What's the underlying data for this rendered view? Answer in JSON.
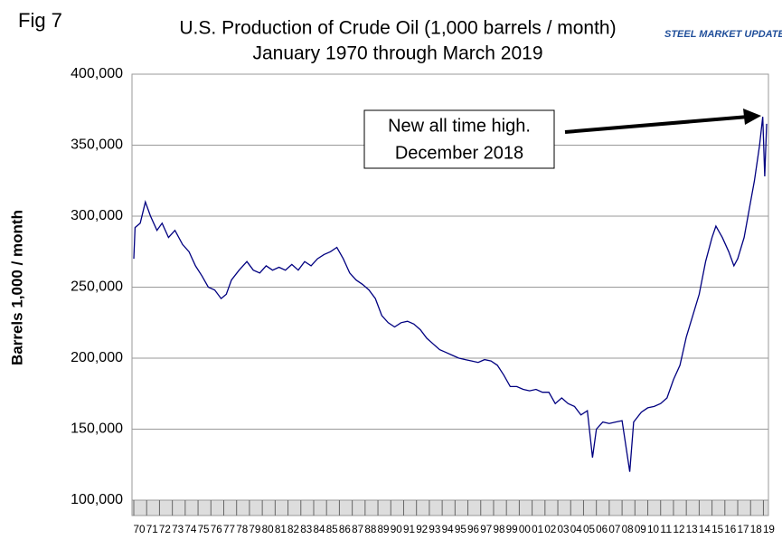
{
  "fig_label": "Fig 7",
  "logo": "STEEL MARKET UPDATE",
  "chart_data": {
    "type": "line",
    "title": "U.S. Production of Crude Oil (1,000 barrels / month)",
    "subtitle": "January 1970 through March 2019",
    "y_label": "Barrels 1,000 / month",
    "annotation": [
      "New all time high.",
      "December 2018"
    ],
    "grid": true,
    "xlim": [
      1970,
      2019.25
    ],
    "ylim": [
      100000,
      400000
    ],
    "yticks": [
      {
        "value": 100000,
        "label": "100,000"
      },
      {
        "value": 150000,
        "label": "150,000"
      },
      {
        "value": 200000,
        "label": "200,000"
      },
      {
        "value": 250000,
        "label": "250,000"
      },
      {
        "value": 300000,
        "label": "300,000"
      },
      {
        "value": 350000,
        "label": "350,000"
      },
      {
        "value": 400000,
        "label": "400,000"
      }
    ],
    "xticks": [
      {
        "value": 1970,
        "label": "70"
      },
      {
        "value": 1971,
        "label": "71"
      },
      {
        "value": 1972,
        "label": "72"
      },
      {
        "value": 1973,
        "label": "73"
      },
      {
        "value": 1974,
        "label": "74"
      },
      {
        "value": 1975,
        "label": "75"
      },
      {
        "value": 1976,
        "label": "76"
      },
      {
        "value": 1977,
        "label": "77"
      },
      {
        "value": 1978,
        "label": "78"
      },
      {
        "value": 1979,
        "label": "79"
      },
      {
        "value": 1980,
        "label": "80"
      },
      {
        "value": 1981,
        "label": "81"
      },
      {
        "value": 1982,
        "label": "82"
      },
      {
        "value": 1983,
        "label": "83"
      },
      {
        "value": 1984,
        "label": "84"
      },
      {
        "value": 1985,
        "label": "85"
      },
      {
        "value": 1986,
        "label": "86"
      },
      {
        "value": 1987,
        "label": "87"
      },
      {
        "value": 1988,
        "label": "88"
      },
      {
        "value": 1989,
        "label": "89"
      },
      {
        "value": 1990,
        "label": "90"
      },
      {
        "value": 1991,
        "label": "91"
      },
      {
        "value": 1992,
        "label": "92"
      },
      {
        "value": 1993,
        "label": "93"
      },
      {
        "value": 1994,
        "label": "94"
      },
      {
        "value": 1995,
        "label": "95"
      },
      {
        "value": 1996,
        "label": "96"
      },
      {
        "value": 1997,
        "label": "97"
      },
      {
        "value": 1998,
        "label": "98"
      },
      {
        "value": 1999,
        "label": "99"
      },
      {
        "value": 2000,
        "label": "00"
      },
      {
        "value": 2001,
        "label": "01"
      },
      {
        "value": 2002,
        "label": "02"
      },
      {
        "value": 2003,
        "label": "03"
      },
      {
        "value": 2004,
        "label": "04"
      },
      {
        "value": 2005,
        "label": "05"
      },
      {
        "value": 2006,
        "label": "06"
      },
      {
        "value": 2007,
        "label": "07"
      },
      {
        "value": 2008,
        "label": "08"
      },
      {
        "value": 2009,
        "label": "09"
      },
      {
        "value": 2010,
        "label": "10"
      },
      {
        "value": 2011,
        "label": "11"
      },
      {
        "value": 2012,
        "label": "12"
      },
      {
        "value": 2013,
        "label": "13"
      },
      {
        "value": 2014,
        "label": "14"
      },
      {
        "value": 2015,
        "label": "15"
      },
      {
        "value": 2016,
        "label": "16"
      },
      {
        "value": 2017,
        "label": "17"
      },
      {
        "value": 2018,
        "label": "18"
      },
      {
        "value": 2019,
        "label": "19"
      }
    ],
    "x": [
      1970.0,
      1970.1,
      1970.5,
      1970.9,
      1971.3,
      1971.8,
      1972.2,
      1972.7,
      1973.2,
      1973.8,
      1974.3,
      1974.8,
      1975.3,
      1975.8,
      1976.3,
      1976.8,
      1977.2,
      1977.6,
      1978.2,
      1978.8,
      1979.3,
      1979.8,
      1980.3,
      1980.8,
      1981.3,
      1981.8,
      1982.3,
      1982.8,
      1983.3,
      1983.8,
      1984.3,
      1984.8,
      1985.3,
      1985.8,
      1986.3,
      1986.8,
      1987.3,
      1987.8,
      1988.3,
      1988.8,
      1989.3,
      1989.8,
      1990.3,
      1990.8,
      1991.3,
      1991.8,
      1992.3,
      1992.8,
      1993.3,
      1993.8,
      1994.3,
      1994.8,
      1995.3,
      1995.8,
      1996.3,
      1996.8,
      1997.3,
      1997.8,
      1998.3,
      1998.8,
      1999.3,
      1999.8,
      2000.3,
      2000.8,
      2001.3,
      2001.8,
      2002.3,
      2002.8,
      2003.3,
      2003.8,
      2004.3,
      2004.8,
      2005.3,
      2005.7,
      2006.0,
      2006.5,
      2007.0,
      2007.5,
      2008.0,
      2008.6,
      2008.9,
      2009.5,
      2010.0,
      2010.5,
      2011.0,
      2011.5,
      2012.0,
      2012.5,
      2013.0,
      2013.5,
      2014.0,
      2014.5,
      2015.0,
      2015.3,
      2015.8,
      2016.3,
      2016.7,
      2017.0,
      2017.5,
      2017.9,
      2018.3,
      2018.7,
      2018.95,
      2019.1,
      2019.25
    ],
    "series": [
      {
        "color": "#000080",
        "values": [
          270000,
          292000,
          295000,
          310000,
          300000,
          290000,
          295000,
          285000,
          290000,
          280000,
          275000,
          265000,
          258000,
          250000,
          248000,
          242000,
          245000,
          255000,
          262000,
          268000,
          262000,
          260000,
          265000,
          262000,
          264000,
          262000,
          266000,
          262000,
          268000,
          265000,
          270000,
          273000,
          275000,
          278000,
          270000,
          260000,
          255000,
          252000,
          248000,
          242000,
          230000,
          225000,
          222000,
          225000,
          226000,
          224000,
          220000,
          214000,
          210000,
          206000,
          204000,
          202000,
          200000,
          199000,
          198000,
          197000,
          199000,
          198000,
          195000,
          188000,
          180000,
          180000,
          178000,
          177000,
          178000,
          176000,
          176000,
          168000,
          172000,
          168000,
          166000,
          160000,
          163000,
          130000,
          150000,
          155000,
          154000,
          155000,
          156000,
          120000,
          155000,
          162000,
          165000,
          166000,
          168000,
          172000,
          185000,
          195000,
          215000,
          230000,
          245000,
          268000,
          285000,
          293000,
          285000,
          275000,
          265000,
          270000,
          285000,
          305000,
          325000,
          350000,
          370000,
          328000,
          365000
        ]
      }
    ]
  }
}
